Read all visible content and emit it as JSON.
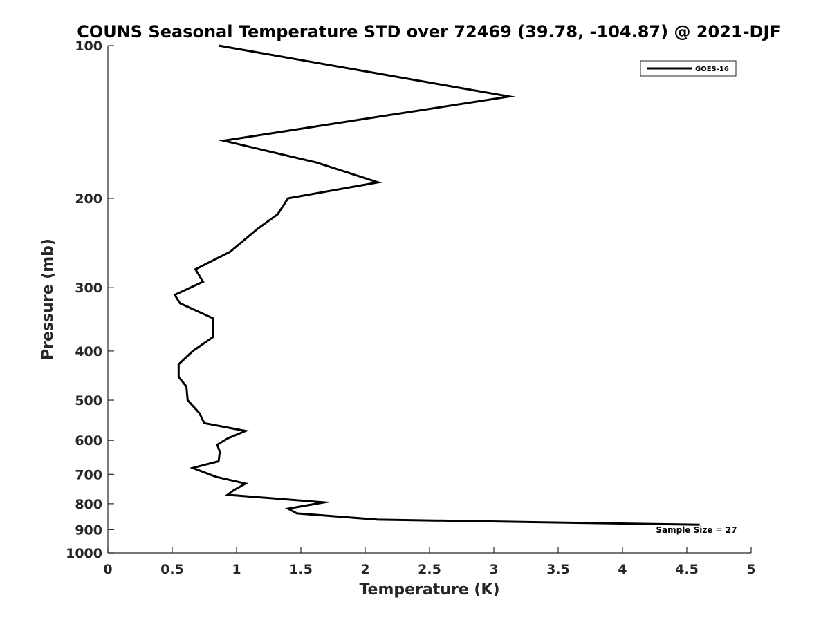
{
  "chart_data": {
    "type": "line",
    "title": "COUNS Seasonal Temperature STD over 72469 (39.78, -104.87) @ 2021-DJF",
    "xlabel": "Temperature (K)",
    "ylabel": "Pressure (mb)",
    "xlim": [
      0,
      5
    ],
    "ylim": [
      100,
      1000
    ],
    "y_scale": "log",
    "y_reversed": true,
    "x_ticks": [
      "0",
      "0.5",
      "1",
      "1.5",
      "2",
      "2.5",
      "3",
      "3.5",
      "4",
      "4.5",
      "5"
    ],
    "x_tick_values": [
      0,
      0.5,
      1,
      1.5,
      2,
      2.5,
      3,
      3.5,
      4,
      4.5,
      5
    ],
    "y_ticks": [
      "100",
      "200",
      "300",
      "400",
      "500",
      "600",
      "700",
      "800",
      "900",
      "1000"
    ],
    "y_tick_values": [
      100,
      200,
      300,
      400,
      500,
      600,
      700,
      800,
      900,
      1000
    ],
    "grid": false,
    "legend_position": "top-right",
    "series": [
      {
        "name": "GOES-16",
        "color": "#000000",
        "x": [
          0.86,
          3.12,
          0.9,
          1.62,
          2.1,
          1.4,
          1.32,
          1.16,
          0.95,
          0.68,
          0.74,
          0.52,
          0.56,
          0.82,
          0.82,
          0.66,
          0.55,
          0.55,
          0.61,
          0.62,
          0.71,
          0.75,
          1.07,
          0.93,
          0.85,
          0.87,
          0.86,
          0.66,
          0.84,
          1.07,
          0.98,
          0.93,
          1.68,
          1.4,
          1.47,
          2.1,
          4.6
        ],
        "y": [
          100,
          126,
          154,
          170,
          186,
          200,
          215,
          230,
          255,
          276,
          292,
          310,
          322,
          345,
          375,
          400,
          425,
          450,
          470,
          500,
          530,
          555,
          575,
          595,
          612,
          632,
          660,
          680,
          708,
          730,
          752,
          768,
          795,
          818,
          836,
          860,
          880
        ]
      }
    ],
    "annotations": [
      "Sample Size = 27"
    ]
  }
}
